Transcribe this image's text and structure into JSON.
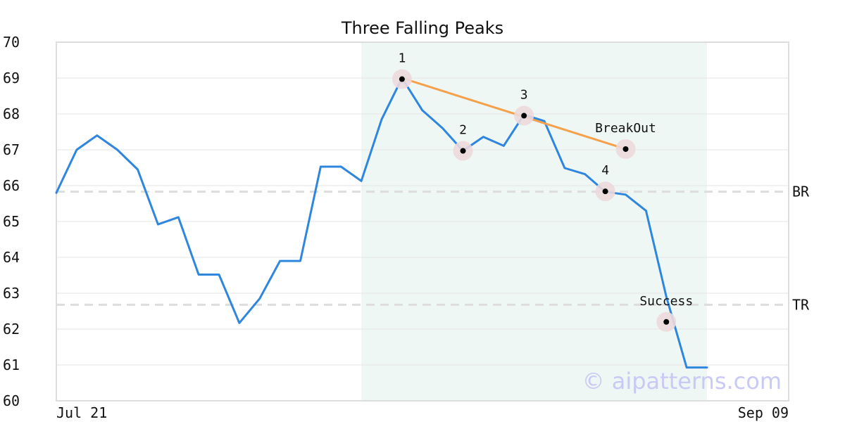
{
  "chart_data": {
    "type": "line",
    "title": "Three Falling Peaks",
    "xlabel": "",
    "ylabel": "",
    "x_tick_labels": [
      "Jul 21",
      "Sep 09"
    ],
    "ylim": [
      60,
      70
    ],
    "yticks": [
      60,
      61,
      62,
      63,
      64,
      65,
      66,
      67,
      68,
      69,
      70
    ],
    "grid": true,
    "series": [
      {
        "values": [
          65.8,
          67.0,
          67.4,
          67.0,
          66.45,
          64.92,
          65.12,
          63.52,
          63.52,
          62.17,
          62.85,
          63.9,
          63.9,
          66.53,
          66.53,
          66.13,
          67.85,
          69.0,
          68.1,
          67.6,
          66.97,
          67.36,
          67.11,
          67.98,
          67.8,
          66.49,
          66.32,
          65.83,
          65.75,
          65.3,
          62.9,
          60.93,
          60.93
        ]
      }
    ],
    "highlight_region": {
      "start_index": 15,
      "end_index": 32
    },
    "levels": [
      {
        "label": "BR",
        "value": 65.83
      },
      {
        "label": "TR",
        "value": 62.68
      }
    ],
    "trendline": {
      "from_index": 17,
      "from_value": 69.0,
      "to_index": 28,
      "to_value": 67.02
    },
    "annotations": [
      {
        "label": "1",
        "index": 17,
        "value": 68.97
      },
      {
        "label": "2",
        "index": 20,
        "value": 66.97
      },
      {
        "label": "3",
        "index": 23,
        "value": 67.95
      },
      {
        "label": "BreakOut",
        "index": 28,
        "value": 67.02
      },
      {
        "label": "4",
        "index": 27,
        "value": 65.84
      },
      {
        "label": "Success",
        "index": 30,
        "value": 62.2
      }
    ],
    "colors": {
      "line": "#2e86de",
      "trendline": "#f5a04a",
      "highlight": "#eef7f3",
      "marker_halo": "#ecd9dd",
      "level": "#dddddd",
      "grid": "#e6e6e6"
    }
  },
  "watermark": "© aipatterns.com"
}
